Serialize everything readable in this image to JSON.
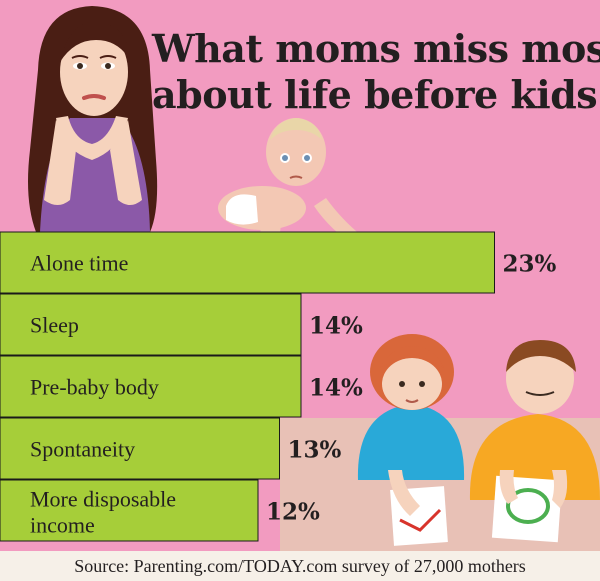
{
  "title_line1": "What moms miss most",
  "title_line2": "about life before kids",
  "source": "Source: Parenting.com/TODAY.com survey of 27,000 mothers",
  "colors": {
    "background": "#f29bc0",
    "lower_background": "#e8c1b6",
    "bar": "#a6ce39",
    "text": "#231f20"
  },
  "chart_data": {
    "type": "bar",
    "orientation": "horizontal",
    "title": "What moms miss most about life before kids",
    "categories": [
      "Alone time",
      "Sleep",
      "Pre-baby body",
      "Spontaneity",
      "More disposable income"
    ],
    "category_lines": [
      [
        "Alone time"
      ],
      [
        "Sleep"
      ],
      [
        "Pre-baby body"
      ],
      [
        "Spontaneity"
      ],
      [
        "More disposable",
        "income"
      ]
    ],
    "values": [
      23,
      14,
      14,
      13,
      12
    ],
    "value_labels": [
      "23%",
      "14%",
      "14%",
      "13%",
      "12%"
    ],
    "unit": "%",
    "grid": false,
    "legend": "none"
  }
}
